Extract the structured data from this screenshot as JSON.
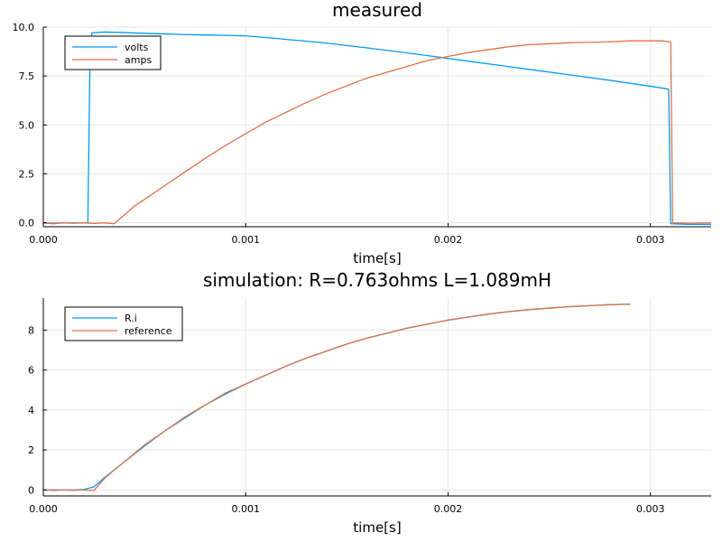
{
  "chart_data": [
    {
      "type": "line",
      "title": "measured",
      "xlabel": "time[s]",
      "ylabel": "",
      "xlim": [
        0,
        0.0033
      ],
      "ylim": [
        -0.2,
        10.0
      ],
      "x_ticks": [
        0,
        0.001,
        0.002,
        0.003
      ],
      "x_tick_labels": [
        "0.000",
        "0.001",
        "0.002",
        "0.003"
      ],
      "y_ticks": [
        0,
        2.5,
        5.0,
        7.5,
        10.0
      ],
      "y_tick_labels": [
        "0.0",
        "2.5",
        "5.0",
        "7.5",
        "10.0"
      ],
      "grid": true,
      "legend_position": "top-left",
      "series": [
        {
          "name": "volts",
          "color": "#009AFA",
          "x": [
            0,
            5e-05,
            0.0001,
            0.00015,
            0.00022,
            0.00023,
            0.00024,
            0.0003,
            0.0004,
            0.0005,
            0.0006,
            0.0007,
            0.0008,
            0.0009,
            0.001,
            0.0011,
            0.0012,
            0.0013,
            0.0014,
            0.0015,
            0.0016,
            0.0017,
            0.0018,
            0.0019,
            0.002,
            0.0021,
            0.0022,
            0.0023,
            0.0024,
            0.0025,
            0.0026,
            0.0027,
            0.0028,
            0.0029,
            0.003,
            0.00309,
            0.0031,
            0.0032,
            0.0033
          ],
          "y": [
            0.0,
            -0.02,
            0.0,
            0.0,
            0.0,
            7.9,
            9.7,
            9.75,
            9.72,
            9.68,
            9.65,
            9.62,
            9.6,
            9.58,
            9.55,
            9.47,
            9.37,
            9.28,
            9.18,
            9.06,
            8.94,
            8.81,
            8.68,
            8.54,
            8.4,
            8.26,
            8.12,
            7.98,
            7.84,
            7.7,
            7.56,
            7.42,
            7.28,
            7.13,
            6.98,
            6.83,
            -0.05,
            -0.08,
            -0.08
          ]
        },
        {
          "name": "amps",
          "color": "#E26F46",
          "x": [
            0,
            5e-05,
            0.0001,
            0.00015,
            0.0002,
            0.00025,
            0.0003,
            0.00035,
            0.0004,
            0.00045,
            0.0005,
            0.0006,
            0.0007,
            0.0008,
            0.0009,
            0.001,
            0.0011,
            0.0012,
            0.0013,
            0.0014,
            0.0015,
            0.0016,
            0.0017,
            0.0018,
            0.0019,
            0.002,
            0.0021,
            0.0022,
            0.0023,
            0.0024,
            0.0025,
            0.0026,
            0.0027,
            0.0028,
            0.0029,
            0.003,
            0.00305,
            0.0031,
            0.00311,
            0.0032,
            0.0033
          ],
          "y": [
            0.0,
            -0.05,
            0.0,
            -0.02,
            0.0,
            -0.03,
            0.0,
            -0.05,
            0.4,
            0.85,
            1.2,
            1.9,
            2.6,
            3.3,
            3.95,
            4.55,
            5.15,
            5.65,
            6.15,
            6.6,
            7.0,
            7.4,
            7.7,
            8.0,
            8.3,
            8.5,
            8.7,
            8.85,
            9.0,
            9.1,
            9.15,
            9.2,
            9.22,
            9.25,
            9.3,
            9.3,
            9.3,
            9.25,
            0.0,
            -0.02,
            0.0
          ]
        }
      ]
    },
    {
      "type": "line",
      "title": "simulation: R=0.763ohms  L=1.089mH",
      "xlabel": "time[s]",
      "ylabel": "",
      "xlim": [
        0,
        0.0033
      ],
      "ylim": [
        -0.3,
        9.6
      ],
      "x_ticks": [
        0,
        0.001,
        0.002,
        0.003
      ],
      "x_tick_labels": [
        "0.000",
        "0.001",
        "0.002",
        "0.003"
      ],
      "y_ticks": [
        0,
        2,
        4,
        6,
        8
      ],
      "y_tick_labels": [
        "0",
        "2",
        "4",
        "6",
        "8"
      ],
      "grid": true,
      "legend_position": "top-left",
      "series": [
        {
          "name": "R.i",
          "color": "#009AFA",
          "x": [
            0,
            5e-05,
            0.0001,
            0.00015,
            0.0002,
            0.00025,
            0.0003,
            0.00035,
            0.0004,
            0.0005,
            0.0006,
            0.0007,
            0.0008,
            0.0009,
            0.001,
            0.0011,
            0.0012,
            0.0013,
            0.0014,
            0.0015,
            0.0016,
            0.0017,
            0.0018,
            0.0019,
            0.002,
            0.0021,
            0.0022,
            0.0023,
            0.0024,
            0.0025,
            0.0026,
            0.0027,
            0.0028,
            0.0029
          ],
          "y": [
            0.0,
            0.0,
            0.0,
            0.0,
            0.02,
            0.15,
            0.6,
            1.0,
            1.4,
            2.2,
            2.95,
            3.6,
            4.25,
            4.8,
            5.3,
            5.75,
            6.2,
            6.6,
            6.95,
            7.3,
            7.6,
            7.85,
            8.1,
            8.3,
            8.5,
            8.65,
            8.8,
            8.92,
            9.02,
            9.1,
            9.17,
            9.22,
            9.27,
            9.3
          ]
        },
        {
          "name": "reference",
          "color": "#E26F46",
          "x": [
            0,
            5e-05,
            0.0001,
            0.00015,
            0.0002,
            0.00025,
            0.0003,
            0.00035,
            0.0004,
            0.0005,
            0.0006,
            0.0007,
            0.0008,
            0.0009,
            0.001,
            0.0011,
            0.0012,
            0.0013,
            0.0014,
            0.0015,
            0.0016,
            0.0017,
            0.0018,
            0.0019,
            0.002,
            0.0021,
            0.0022,
            0.0023,
            0.0024,
            0.0025,
            0.0026,
            0.0027,
            0.0028,
            0.0029
          ],
          "y": [
            0.0,
            -0.03,
            0.0,
            -0.02,
            0.0,
            -0.03,
            0.55,
            1.0,
            1.4,
            2.25,
            2.95,
            3.65,
            4.25,
            4.85,
            5.3,
            5.75,
            6.2,
            6.6,
            6.95,
            7.3,
            7.6,
            7.85,
            8.1,
            8.3,
            8.5,
            8.65,
            8.8,
            8.92,
            9.02,
            9.1,
            9.17,
            9.22,
            9.27,
            9.3
          ]
        }
      ]
    }
  ]
}
